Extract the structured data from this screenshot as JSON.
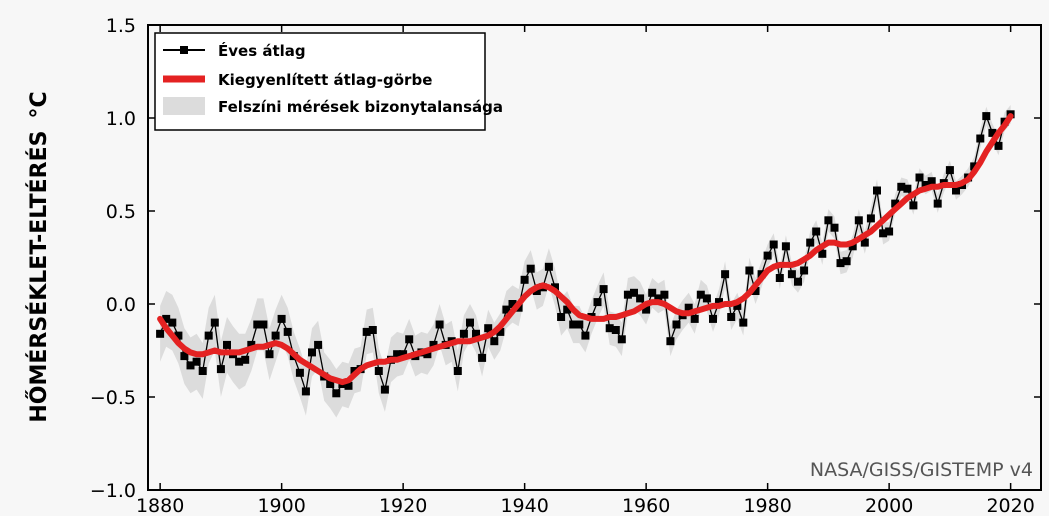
{
  "chart_data": {
    "type": "line",
    "title": "",
    "xlabel": "",
    "ylabel": "HŐMÉRSÉKLET-ELTÉRÉS",
    "ylabel_unit": "°C",
    "xlim": [
      1878,
      2025
    ],
    "ylim": [
      -1.0,
      1.5
    ],
    "x_ticks": [
      1880,
      1900,
      1920,
      1940,
      1960,
      1980,
      2000,
      2020
    ],
    "x_tick_labels": [
      "1880",
      "1900",
      "1920",
      "1940",
      "1960",
      "1980",
      "2000",
      "2020"
    ],
    "y_ticks": [
      -1.0,
      -0.5,
      0.0,
      0.5,
      1.0,
      1.5
    ],
    "y_tick_labels": [
      "−1.0",
      "−0.5",
      "0.0",
      "0.5",
      "1.0",
      "1.5"
    ],
    "grid": false,
    "legend_position": "top-left",
    "source_note": "NASA/GISS/GISTEMP v4",
    "x": [
      1880,
      1881,
      1882,
      1883,
      1884,
      1885,
      1886,
      1887,
      1888,
      1889,
      1890,
      1891,
      1892,
      1893,
      1894,
      1895,
      1896,
      1897,
      1898,
      1899,
      1900,
      1901,
      1902,
      1903,
      1904,
      1905,
      1906,
      1907,
      1908,
      1909,
      1910,
      1911,
      1912,
      1913,
      1914,
      1915,
      1916,
      1917,
      1918,
      1919,
      1920,
      1921,
      1922,
      1923,
      1924,
      1925,
      1926,
      1927,
      1928,
      1929,
      1930,
      1931,
      1932,
      1933,
      1934,
      1935,
      1936,
      1937,
      1938,
      1939,
      1940,
      1941,
      1942,
      1943,
      1944,
      1945,
      1946,
      1947,
      1948,
      1949,
      1950,
      1951,
      1952,
      1953,
      1954,
      1955,
      1956,
      1957,
      1958,
      1959,
      1960,
      1961,
      1962,
      1963,
      1964,
      1965,
      1966,
      1967,
      1968,
      1969,
      1970,
      1971,
      1972,
      1973,
      1974,
      1975,
      1976,
      1977,
      1978,
      1979,
      1980,
      1981,
      1982,
      1983,
      1984,
      1985,
      1986,
      1987,
      1988,
      1989,
      1990,
      1991,
      1992,
      1993,
      1994,
      1995,
      1996,
      1997,
      1998,
      1999,
      2000,
      2001,
      2002,
      2003,
      2004,
      2005,
      2006,
      2007,
      2008,
      2009,
      2010,
      2011,
      2012,
      2013,
      2014,
      2015,
      2016,
      2017,
      2018,
      2019,
      2020
    ],
    "series": [
      {
        "name": "Éves átlag",
        "role": "annual",
        "color": "#000000",
        "values": [
          -0.16,
          -0.08,
          -0.1,
          -0.17,
          -0.28,
          -0.33,
          -0.31,
          -0.36,
          -0.17,
          -0.1,
          -0.35,
          -0.22,
          -0.27,
          -0.31,
          -0.3,
          -0.22,
          -0.11,
          -0.11,
          -0.27,
          -0.17,
          -0.08,
          -0.15,
          -0.28,
          -0.37,
          -0.47,
          -0.26,
          -0.22,
          -0.39,
          -0.43,
          -0.48,
          -0.43,
          -0.44,
          -0.36,
          -0.35,
          -0.15,
          -0.14,
          -0.36,
          -0.46,
          -0.3,
          -0.27,
          -0.27,
          -0.19,
          -0.28,
          -0.26,
          -0.27,
          -0.22,
          -0.11,
          -0.22,
          -0.2,
          -0.36,
          -0.16,
          -0.1,
          -0.16,
          -0.29,
          -0.13,
          -0.2,
          -0.15,
          -0.03,
          -0.0,
          -0.02,
          0.13,
          0.19,
          0.07,
          0.09,
          0.2,
          0.09,
          -0.07,
          -0.03,
          -0.11,
          -0.11,
          -0.17,
          -0.07,
          0.01,
          0.08,
          -0.13,
          -0.14,
          -0.19,
          0.05,
          0.06,
          0.03,
          -0.03,
          0.06,
          0.03,
          0.05,
          -0.2,
          -0.11,
          -0.06,
          -0.02,
          -0.08,
          0.05,
          0.03,
          -0.08,
          0.01,
          0.16,
          -0.07,
          -0.01,
          -0.1,
          0.18,
          0.07,
          0.16,
          0.26,
          0.32,
          0.14,
          0.31,
          0.16,
          0.12,
          0.18,
          0.33,
          0.39,
          0.27,
          0.45,
          0.41,
          0.22,
          0.23,
          0.31,
          0.45,
          0.33,
          0.46,
          0.61,
          0.38,
          0.39,
          0.54,
          0.63,
          0.62,
          0.53,
          0.68,
          0.64,
          0.66,
          0.54,
          0.65,
          0.72,
          0.61,
          0.64,
          0.68,
          0.74,
          0.89,
          1.01,
          0.92,
          0.85,
          0.98,
          1.02
        ]
      },
      {
        "name": "Kiegyenlített átlag-görbe",
        "role": "smoothed",
        "color": "#e42222",
        "values": [
          -0.08,
          -0.13,
          -0.17,
          -0.21,
          -0.24,
          -0.26,
          -0.27,
          -0.27,
          -0.26,
          -0.25,
          -0.26,
          -0.26,
          -0.26,
          -0.26,
          -0.25,
          -0.24,
          -0.23,
          -0.23,
          -0.22,
          -0.21,
          -0.22,
          -0.24,
          -0.27,
          -0.3,
          -0.32,
          -0.34,
          -0.36,
          -0.38,
          -0.4,
          -0.41,
          -0.42,
          -0.41,
          -0.38,
          -0.35,
          -0.33,
          -0.32,
          -0.31,
          -0.31,
          -0.3,
          -0.3,
          -0.29,
          -0.28,
          -0.27,
          -0.26,
          -0.25,
          -0.24,
          -0.23,
          -0.22,
          -0.21,
          -0.2,
          -0.2,
          -0.2,
          -0.19,
          -0.18,
          -0.17,
          -0.15,
          -0.12,
          -0.08,
          -0.04,
          0.0,
          0.04,
          0.07,
          0.09,
          0.1,
          0.09,
          0.07,
          0.04,
          0.01,
          -0.03,
          -0.06,
          -0.07,
          -0.08,
          -0.08,
          -0.08,
          -0.07,
          -0.07,
          -0.06,
          -0.05,
          -0.04,
          -0.02,
          0.0,
          0.01,
          0.01,
          0.0,
          -0.02,
          -0.04,
          -0.05,
          -0.05,
          -0.04,
          -0.03,
          -0.02,
          -0.01,
          -0.01,
          0.0,
          0.0,
          0.01,
          0.03,
          0.06,
          0.1,
          0.14,
          0.18,
          0.2,
          0.21,
          0.21,
          0.21,
          0.22,
          0.24,
          0.26,
          0.29,
          0.31,
          0.33,
          0.33,
          0.32,
          0.32,
          0.33,
          0.35,
          0.37,
          0.39,
          0.42,
          0.45,
          0.48,
          0.51,
          0.54,
          0.57,
          0.59,
          0.61,
          0.62,
          0.63,
          0.63,
          0.64,
          0.64,
          0.64,
          0.65,
          0.67,
          0.71,
          0.76,
          0.82,
          0.87,
          0.92,
          0.96,
          1.01
        ]
      },
      {
        "name": "Felszíni mérések bizonytalansága",
        "role": "uncertainty",
        "color": "#dcdcdc",
        "note": "band around annual values",
        "half_width": [
          0.15,
          0.15,
          0.15,
          0.15,
          0.15,
          0.15,
          0.15,
          0.15,
          0.15,
          0.15,
          0.15,
          0.15,
          0.15,
          0.15,
          0.14,
          0.14,
          0.14,
          0.14,
          0.14,
          0.14,
          0.13,
          0.13,
          0.13,
          0.13,
          0.13,
          0.13,
          0.13,
          0.13,
          0.13,
          0.13,
          0.12,
          0.12,
          0.12,
          0.12,
          0.12,
          0.12,
          0.12,
          0.12,
          0.12,
          0.12,
          0.11,
          0.11,
          0.11,
          0.11,
          0.11,
          0.11,
          0.11,
          0.11,
          0.11,
          0.11,
          0.1,
          0.1,
          0.1,
          0.1,
          0.1,
          0.1,
          0.1,
          0.1,
          0.1,
          0.1,
          0.1,
          0.1,
          0.1,
          0.1,
          0.1,
          0.1,
          0.1,
          0.1,
          0.1,
          0.1,
          0.09,
          0.09,
          0.09,
          0.09,
          0.09,
          0.09,
          0.09,
          0.09,
          0.09,
          0.09,
          0.08,
          0.08,
          0.08,
          0.08,
          0.08,
          0.08,
          0.08,
          0.08,
          0.08,
          0.08,
          0.07,
          0.07,
          0.07,
          0.07,
          0.07,
          0.07,
          0.07,
          0.07,
          0.07,
          0.07,
          0.06,
          0.06,
          0.06,
          0.06,
          0.06,
          0.06,
          0.06,
          0.06,
          0.06,
          0.06,
          0.06,
          0.06,
          0.06,
          0.06,
          0.06,
          0.06,
          0.06,
          0.06,
          0.06,
          0.06,
          0.05,
          0.05,
          0.05,
          0.05,
          0.05,
          0.05,
          0.05,
          0.05,
          0.05,
          0.05,
          0.05,
          0.05,
          0.05,
          0.05,
          0.05,
          0.05,
          0.05,
          0.05,
          0.05,
          0.05,
          0.05
        ]
      }
    ],
    "legend": [
      {
        "label": "Éves átlag",
        "swatch": "line-marker"
      },
      {
        "label": "Kiegyenlített átlag-görbe",
        "swatch": "thick-line"
      },
      {
        "label": "Felszíni mérések bizonytalansága",
        "swatch": "band"
      }
    ]
  }
}
